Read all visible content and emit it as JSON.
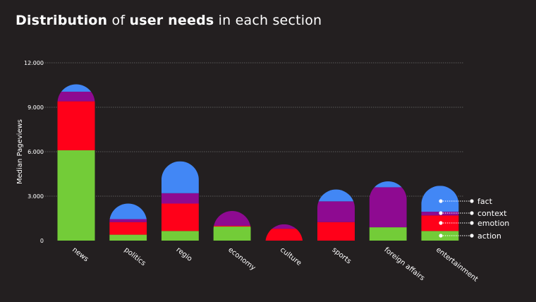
{
  "title": {
    "part1": "Distribution",
    "part2": " of ",
    "part3": "user needs",
    "part4": " in each section"
  },
  "colors": {
    "background": "#231f20",
    "fact": "#4287f5",
    "context": "#8e0a91",
    "emotion": "#ff0019",
    "action": "#73cc38",
    "grid": "#6e6e6e"
  },
  "chart_data": {
    "type": "bar",
    "stacked": true,
    "bar_top": "rounded",
    "ylabel": "Median Pageviews",
    "ylim": [
      0,
      12000
    ],
    "yticks": [
      0,
      3000,
      6000,
      9000,
      12000
    ],
    "ytick_labels": [
      "0",
      "3.000",
      "6.000",
      "9.000",
      "12.000"
    ],
    "grid": "horizontal dotted",
    "legend_position": "right",
    "categories": [
      "news",
      "politics",
      "regio",
      "economy",
      "culture",
      "sports",
      "foreign affairs",
      "entertainment"
    ],
    "series": [
      {
        "name": "action",
        "values": [
          6100,
          400,
          650,
          950,
          0,
          0,
          900,
          650
        ]
      },
      {
        "name": "emotion",
        "values": [
          3300,
          850,
          1850,
          50,
          800,
          1250,
          0,
          1050
        ]
      },
      {
        "name": "context",
        "values": [
          650,
          200,
          700,
          1000,
          300,
          1400,
          2700,
          250
        ]
      },
      {
        "name": "fact",
        "values": [
          500,
          1050,
          2150,
          0,
          0,
          800,
          400,
          1750
        ]
      }
    ],
    "legend": [
      "fact",
      "context",
      "emotion",
      "action"
    ]
  }
}
